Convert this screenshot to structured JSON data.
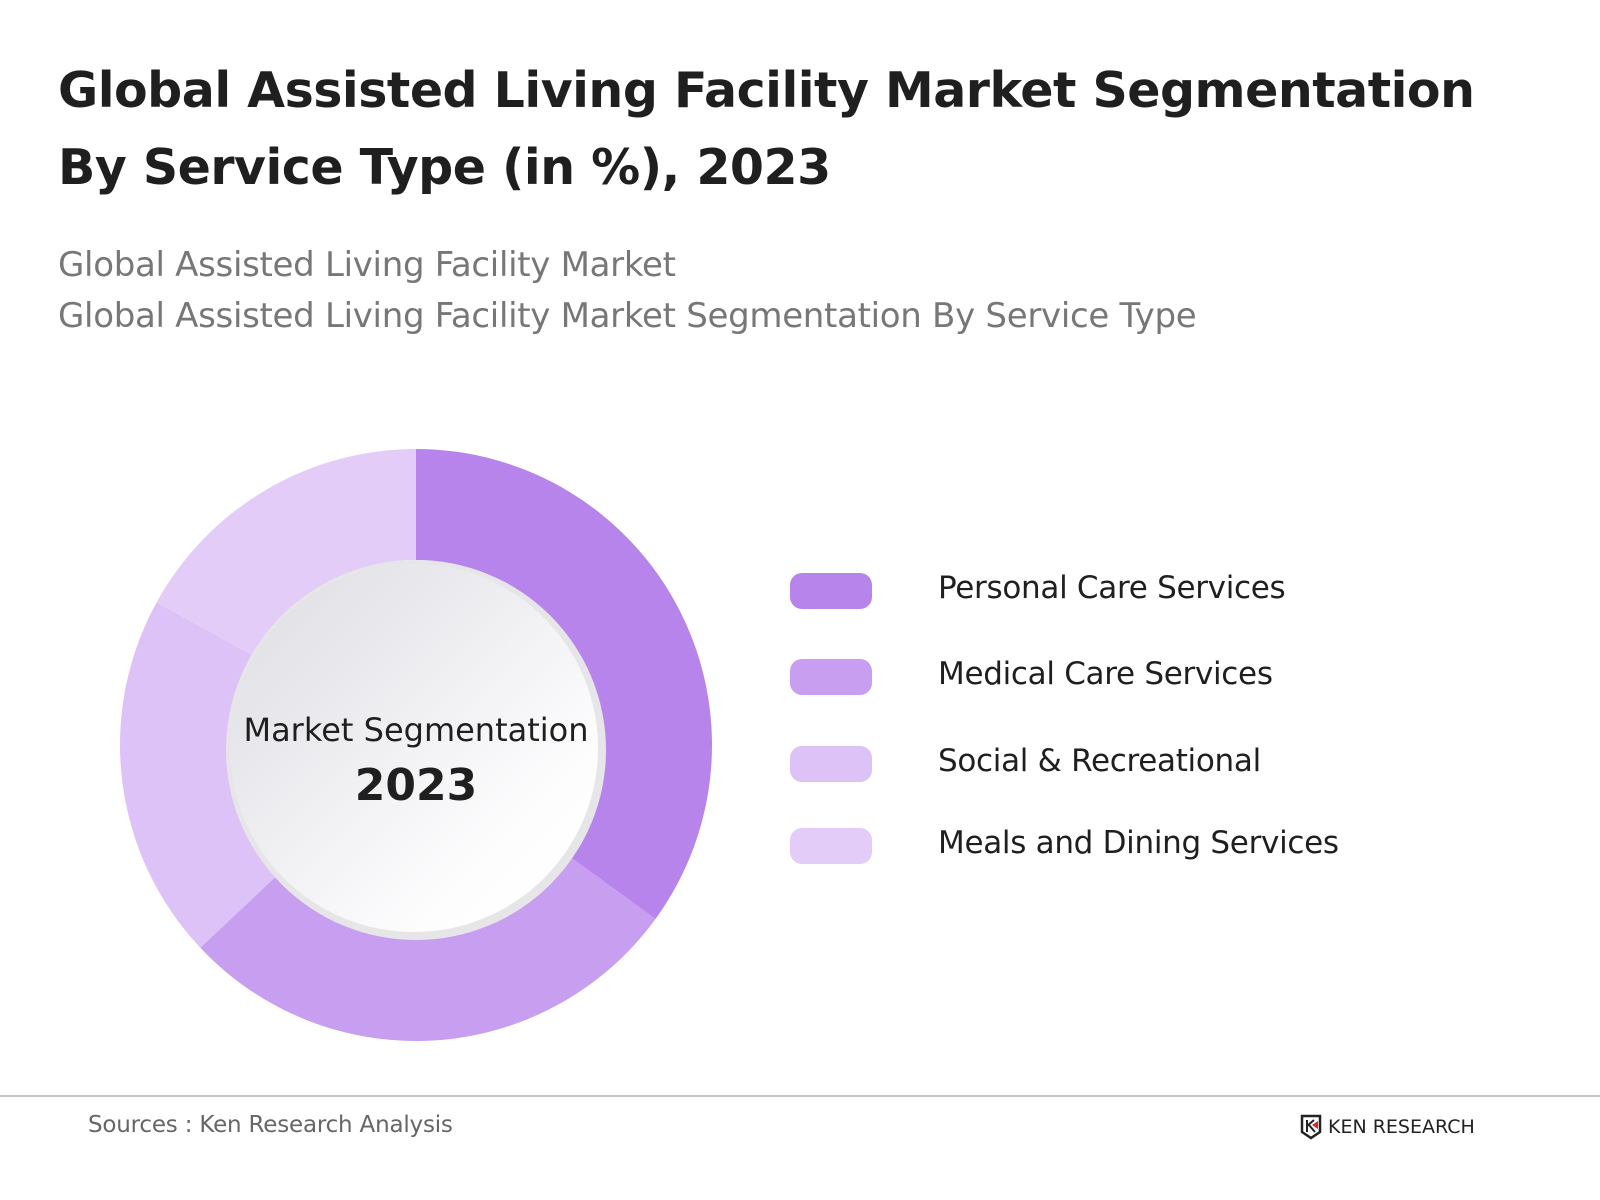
{
  "title": "Global Assisted Living Facility Market Segmentation By Service Type (in %), 2023",
  "subtitles": [
    "Global Assisted Living Facility Market",
    "Global Assisted Living Facility Market Segmentation By Service Type"
  ],
  "chart_data": {
    "type": "pie",
    "variant": "donut",
    "center_label": "Market Segmentation",
    "center_year": "2023",
    "categories": [
      "Personal Care Services",
      "Medical Care Services",
      "Social & Recreational",
      "Meals and Dining Services"
    ],
    "values": [
      35,
      28,
      20,
      17
    ],
    "colors": [
      "#b784eb",
      "#c79ef0",
      "#dcc2f6",
      "#e3cdf8"
    ],
    "legend_position": "right"
  },
  "footer": {
    "source": "Sources : Ken Research Analysis",
    "logo": "KEN RESEARCH"
  }
}
